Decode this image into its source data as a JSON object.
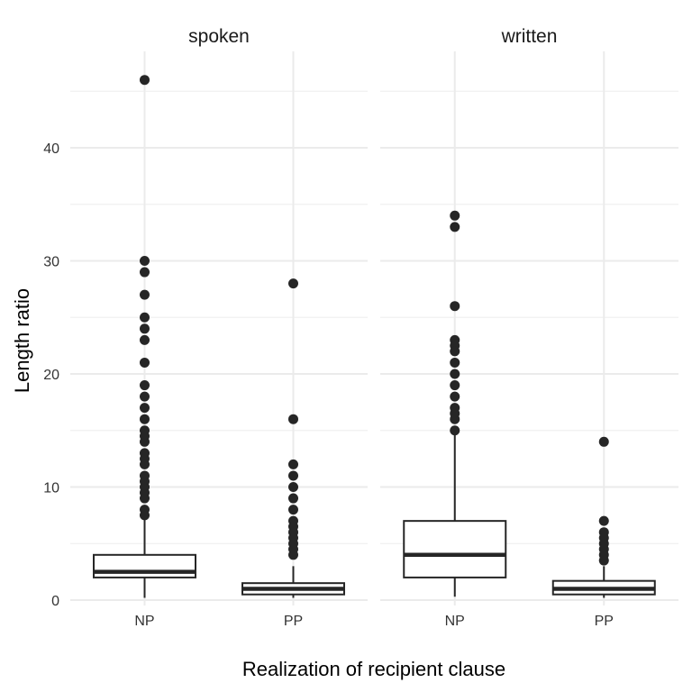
{
  "chart_data": {
    "type": "boxplot",
    "xlabel": "Realization of recipient clause",
    "ylabel": "Length ratio",
    "ylim": [
      -0.3,
      49
    ],
    "y_ticks": [
      0,
      10,
      20,
      30,
      40
    ],
    "y_tick_labels": [
      "0",
      "10",
      "20",
      "30",
      "40"
    ],
    "categories": [
      "NP",
      "PP"
    ],
    "grid": true,
    "facets": [
      {
        "name": "spoken",
        "boxes": [
          {
            "category": "NP",
            "min": 0.2,
            "q1": 2,
            "median": 2.5,
            "q3": 4,
            "max": 7.5,
            "outliers": [
              46,
              30,
              29,
              27,
              25,
              24,
              23,
              21,
              19,
              18,
              17,
              16,
              15,
              14.5,
              14,
              13,
              12.5,
              12,
              11,
              10.5,
              10,
              9.5,
              9,
              8,
              7.5
            ]
          },
          {
            "category": "PP",
            "min": 0.2,
            "q1": 0.5,
            "median": 1,
            "q3": 1.5,
            "max": 3,
            "outliers": [
              28,
              16,
              12,
              11,
              10,
              9,
              8,
              7,
              6.5,
              6,
              5.5,
              5,
              4.5,
              4
            ]
          }
        ]
      },
      {
        "name": "written",
        "boxes": [
          {
            "category": "NP",
            "min": 0.3,
            "q1": 2,
            "median": 4,
            "q3": 7,
            "max": 15,
            "outliers": [
              34,
              33,
              26,
              23,
              22.5,
              22,
              21,
              20,
              19,
              18,
              17,
              16.5,
              16,
              15
            ]
          },
          {
            "category": "PP",
            "min": 0.2,
            "q1": 0.5,
            "median": 1,
            "q3": 1.7,
            "max": 3,
            "outliers": [
              14,
              7,
              6,
              5.5,
              5,
              4.5,
              4,
              3.5
            ]
          }
        ]
      }
    ]
  }
}
